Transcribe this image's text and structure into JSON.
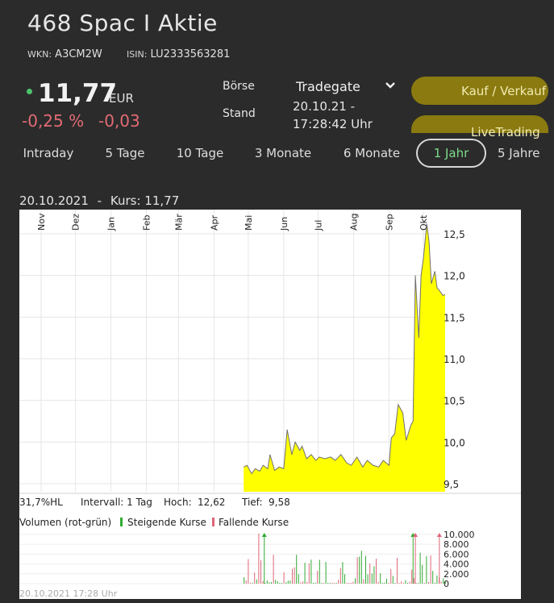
{
  "header": {
    "title": "468 Spac I Aktie",
    "wkn_label": "WKN:",
    "wkn_value": "A3CM2W",
    "isin_label": "ISIN:",
    "isin_value": "LU2333563281"
  },
  "quote": {
    "price": "11,77",
    "currency": "EUR",
    "change_pct": "-0,25 %",
    "change_abs": "-0,03",
    "status_color": "#4cc26b",
    "negative_color": "#e26b74"
  },
  "exchange": {
    "boerse_label": "Börse",
    "boerse_value": "Tradegate",
    "stand_label": "Stand",
    "stand_date": "20.10.21 -",
    "stand_time": "17:28:42 Uhr"
  },
  "buttons": {
    "trade": "Kauf / Verkauf",
    "live": "LiveTrading"
  },
  "tabs": [
    "Intraday",
    "5 Tage",
    "10 Tage",
    "3 Monate",
    "6 Monate",
    "1 Jahr",
    "5 Jahre"
  ],
  "active_tab": "1 Jahr",
  "chart_header": {
    "date": "20.10.2021",
    "sep": "-",
    "kurs_label": "Kurs:",
    "kurs_value": "11,77"
  },
  "chart_info": {
    "hl": "31,7%HL",
    "interval": "Intervall: 1 Tag",
    "hoch_label": "Hoch:",
    "hoch_value": "12,62",
    "tief_label": "Tief:",
    "tief_value": "9,58"
  },
  "volume_legend": {
    "title": "Volumen (rot-grün)",
    "up": "Steigende Kurse",
    "down": "Fallende Kurse"
  },
  "footer_timestamp": "20.10.2021 17:28 Uhr",
  "chart_data": {
    "type": "area",
    "months": [
      "Nov",
      "Dez",
      "Jan",
      "Feb",
      "Mär",
      "Apr",
      "Mai",
      "Jun",
      "Jul",
      "Aug",
      "Sep",
      "Okt"
    ],
    "y_ticks": [
      "12,5",
      "12,0",
      "11,5",
      "11,0",
      "10,5",
      "10,0",
      "9,5"
    ],
    "ylim": [
      9.4,
      12.65
    ],
    "fill_color": "#ffff00",
    "series": [
      {
        "x": [
          "2021-04-27",
          "2021-04-30",
          "2021-05-04",
          "2021-05-07",
          "2021-05-11",
          "2021-05-14",
          "2021-05-18",
          "2021-05-20",
          "2021-05-24",
          "2021-05-28",
          "2021-06-01",
          "2021-06-04",
          "2021-06-08",
          "2021-06-11",
          "2021-06-15",
          "2021-06-17",
          "2021-06-21",
          "2021-06-25",
          "2021-06-29",
          "2021-07-02",
          "2021-07-07",
          "2021-07-12",
          "2021-07-16",
          "2021-07-21",
          "2021-07-26",
          "2021-07-30",
          "2021-08-04",
          "2021-08-09",
          "2021-08-13",
          "2021-08-18",
          "2021-08-23",
          "2021-08-27",
          "2021-09-01",
          "2021-09-03",
          "2021-09-06",
          "2021-09-09",
          "2021-09-13",
          "2021-09-16",
          "2021-09-20",
          "2021-09-22",
          "2021-09-24",
          "2021-09-27",
          "2021-09-29",
          "2021-10-01",
          "2021-10-04",
          "2021-10-06",
          "2021-10-08",
          "2021-10-11",
          "2021-10-13",
          "2021-10-15",
          "2021-10-18",
          "2021-10-20"
        ],
        "y": [
          9.7,
          9.72,
          9.62,
          9.68,
          9.65,
          9.72,
          9.68,
          9.85,
          9.66,
          9.7,
          9.68,
          10.15,
          9.85,
          10.0,
          9.9,
          9.95,
          9.8,
          9.85,
          9.78,
          9.82,
          9.8,
          9.82,
          9.78,
          9.85,
          9.75,
          9.72,
          9.82,
          9.7,
          9.78,
          9.72,
          9.7,
          9.78,
          9.72,
          10.05,
          10.1,
          10.45,
          10.35,
          10.02,
          10.2,
          10.25,
          12.0,
          11.25,
          12.0,
          12.2,
          12.62,
          12.4,
          11.9,
          12.05,
          11.85,
          11.82,
          11.76,
          11.77
        ]
      }
    ],
    "volume": {
      "y_ticks": [
        "10.000",
        "8.000",
        "6.000",
        "4.000",
        "2.000",
        "0"
      ],
      "ylim": [
        0,
        10000
      ]
    }
  }
}
